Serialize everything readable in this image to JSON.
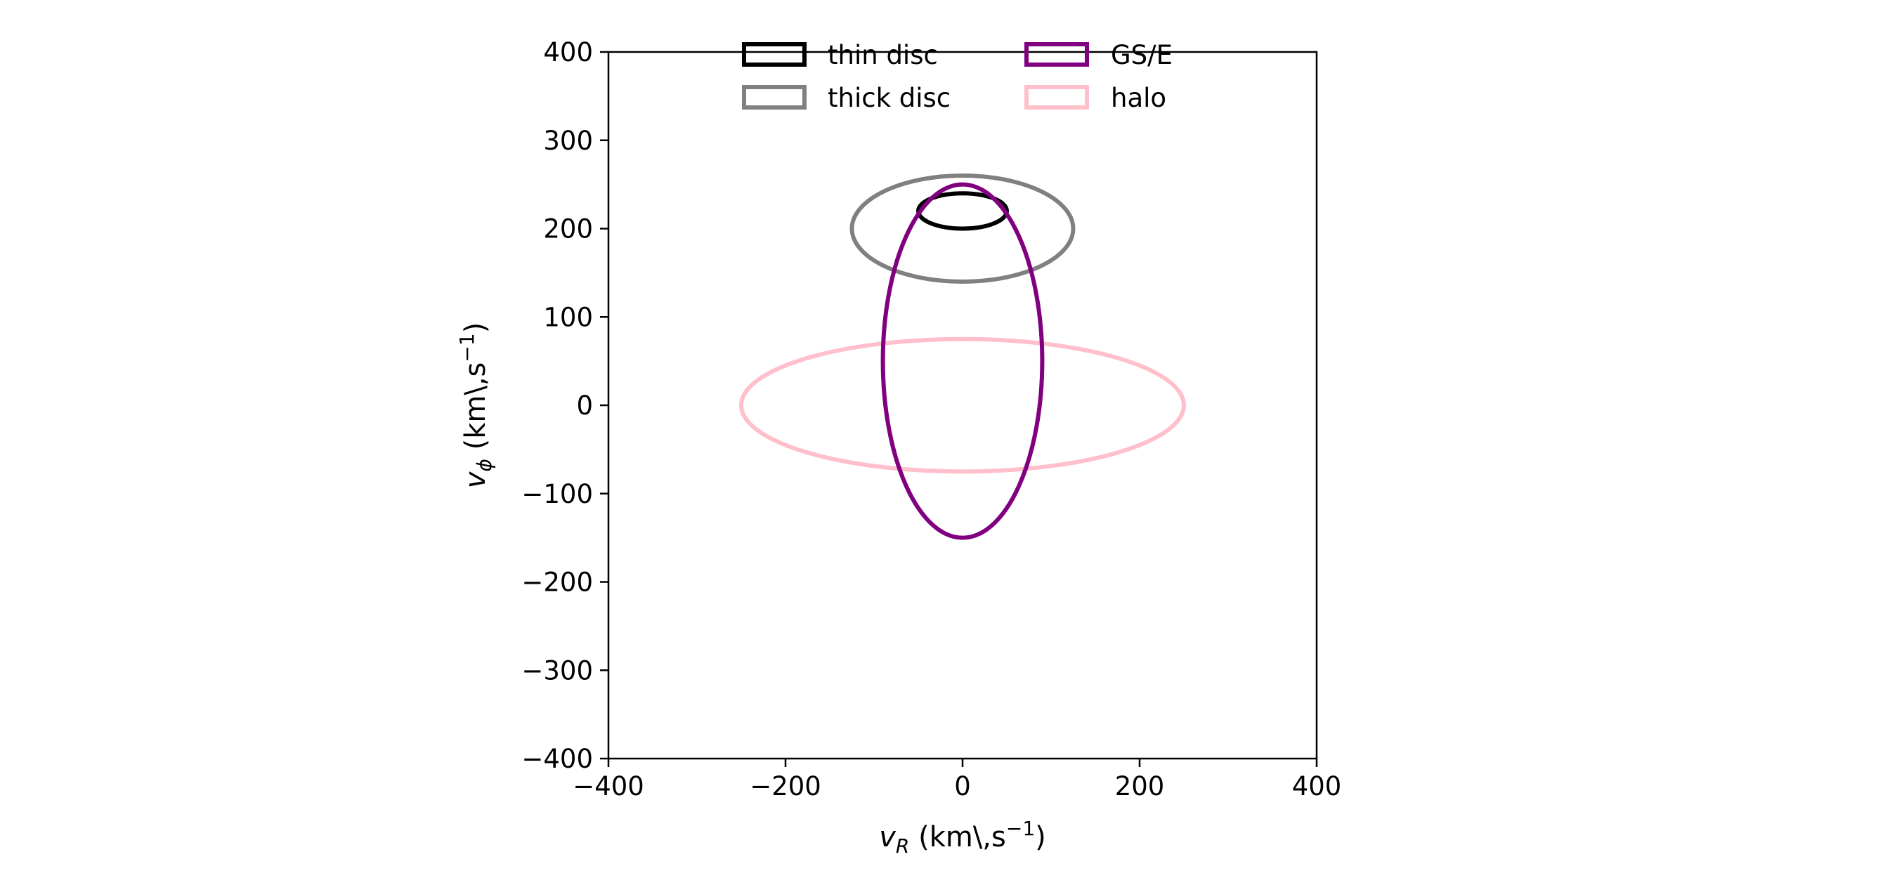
{
  "chart_data": {
    "type": "scatter",
    "title": "",
    "xlabel": {
      "symbol": "v",
      "subscript": "R",
      "unit_prefix": " (km\\,s",
      "unit_sup": "−1",
      "unit_suffix": ")"
    },
    "ylabel": {
      "symbol": "v",
      "subscript": "ϕ",
      "unit_prefix": " (km\\,s",
      "unit_sup": "−1",
      "unit_suffix": ")"
    },
    "xlim": [
      -400,
      400
    ],
    "ylim": [
      -400,
      400
    ],
    "xticks": [
      -400,
      -200,
      0,
      200,
      400
    ],
    "yticks": [
      -400,
      -300,
      -200,
      -100,
      0,
      100,
      200,
      300,
      400
    ],
    "xtick_labels": [
      "−400",
      "−200",
      "0",
      "200",
      "400"
    ],
    "ytick_labels": [
      "−400",
      "−300",
      "−200",
      "−100",
      "0",
      "100",
      "200",
      "300",
      "400"
    ],
    "grid": false,
    "legend_placement": "upper center",
    "series": [
      {
        "name": "thin disc",
        "shape": "ellipse",
        "center": [
          0,
          220
        ],
        "half_width": 50,
        "half_height": 20,
        "color": "#000000"
      },
      {
        "name": "thick disc",
        "shape": "ellipse",
        "center": [
          0,
          200
        ],
        "half_width": 125,
        "half_height": 60,
        "color": "#808080"
      },
      {
        "name": "GS/E",
        "shape": "ellipse",
        "center": [
          0,
          50
        ],
        "half_width": 90,
        "half_height": 200,
        "color": "#800080"
      },
      {
        "name": "halo",
        "shape": "ellipse",
        "center": [
          0,
          0
        ],
        "half_width": 250,
        "half_height": 75,
        "color": "#ffc0cb"
      }
    ],
    "draw_order": [
      "thick disc",
      "thin disc",
      "halo",
      "GS/E"
    ]
  }
}
